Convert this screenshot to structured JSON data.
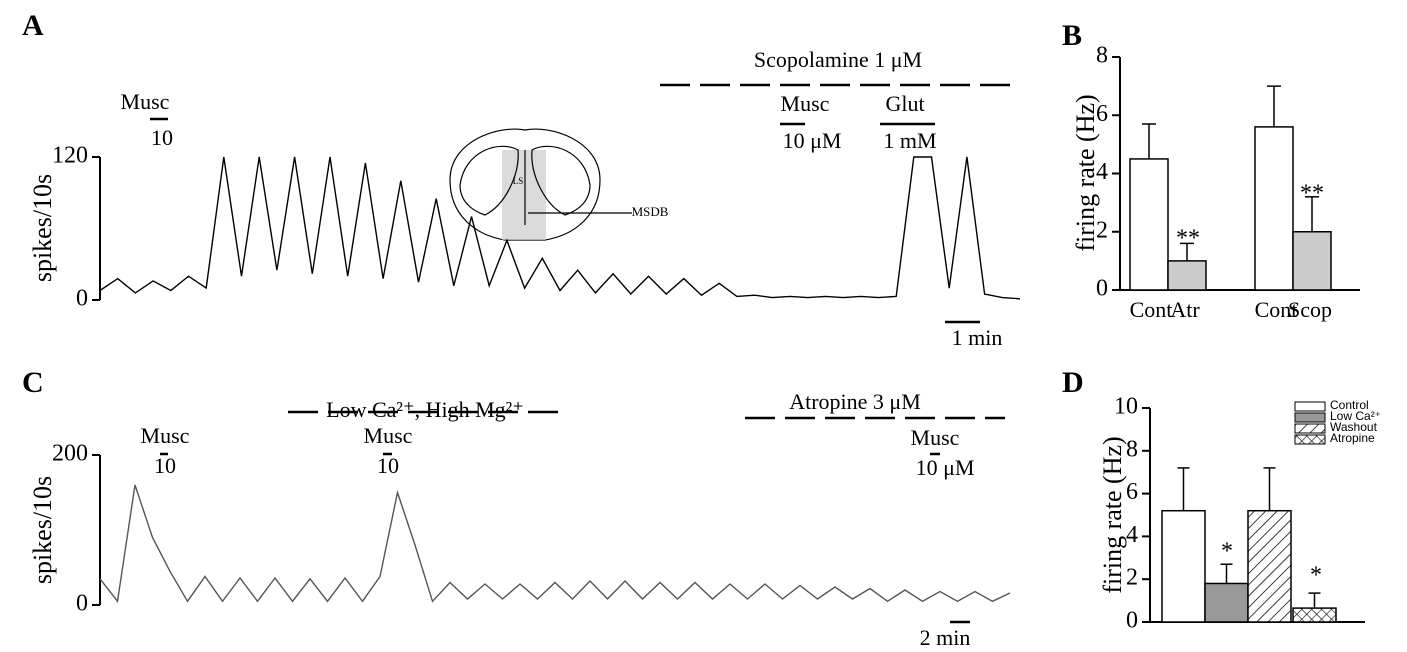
{
  "chart_data": [
    {
      "type": "line",
      "panel": "A",
      "ylabel": "spikes/10s",
      "color": "#000000",
      "x": [
        0,
        0.5,
        1,
        1.5,
        2,
        2.5,
        3,
        3.5,
        4,
        4.5,
        5,
        5.5,
        6,
        6.5,
        7,
        7.5,
        8,
        8.5,
        9,
        9.5,
        10,
        10.5,
        11,
        11.5,
        12,
        12.5,
        13,
        13.5,
        14,
        14.5,
        15,
        15.5,
        16,
        16.5,
        17,
        17.5,
        18,
        18.5,
        19,
        19.5,
        20,
        20.5,
        21,
        21.5,
        22,
        22.5,
        23,
        23.5,
        24,
        24.5,
        25,
        25.5,
        26
      ],
      "values": [
        8,
        18,
        6,
        16,
        8,
        20,
        10,
        120,
        20,
        120,
        25,
        120,
        22,
        120,
        20,
        115,
        18,
        100,
        15,
        85,
        12,
        70,
        12,
        50,
        10,
        35,
        8,
        25,
        6,
        22,
        5,
        20,
        5,
        18,
        4,
        14,
        3,
        4,
        2,
        3,
        2,
        3,
        2,
        3,
        2,
        3,
        120,
        120,
        10,
        120,
        5,
        2,
        1
      ],
      "xlim": [
        0,
        26
      ],
      "ylim": [
        0,
        120
      ],
      "yticks": [
        0,
        120
      ],
      "annotations": [
        "Musc",
        "10",
        "Scopolamine 1 μM",
        "Musc",
        "10 μM",
        "Glut",
        "1 mM",
        "LS",
        "MSDB",
        "1 min"
      ]
    },
    {
      "type": "bar",
      "panel": "B",
      "ylabel": "firing rate (Hz)",
      "categories": [
        "Cont",
        "Atr",
        "Cont",
        "Scop"
      ],
      "values": [
        4.5,
        1.0,
        5.6,
        2.0
      ],
      "errors": [
        1.2,
        0.6,
        1.4,
        1.2
      ],
      "colors": [
        "#ffffff",
        "#cccccc",
        "#ffffff",
        "#cccccc"
      ],
      "ylim": [
        0,
        8
      ],
      "yticks": [
        0,
        2,
        4,
        6,
        8
      ],
      "annotations": [
        "**",
        "**"
      ]
    },
    {
      "type": "line",
      "panel": "C",
      "ylabel": "spikes/10s",
      "color": "#555555",
      "x": [
        0,
        1,
        2,
        3,
        4,
        5,
        6,
        7,
        8,
        9,
        10,
        11,
        12,
        13,
        14,
        15,
        16,
        17,
        18,
        19,
        20,
        21,
        22,
        23,
        24,
        25,
        26,
        27,
        28,
        29,
        30,
        31,
        32,
        33,
        34,
        35,
        36,
        37,
        38,
        39,
        40,
        41,
        42,
        43,
        44,
        45,
        46,
        47,
        48,
        49,
        50,
        51,
        52
      ],
      "values": [
        35,
        5,
        160,
        90,
        45,
        5,
        38,
        5,
        36,
        5,
        36,
        5,
        35,
        5,
        36,
        5,
        38,
        150,
        80,
        5,
        30,
        8,
        28,
        8,
        28,
        8,
        30,
        8,
        32,
        8,
        32,
        8,
        30,
        8,
        30,
        8,
        28,
        8,
        28,
        8,
        26,
        8,
        24,
        8,
        22,
        5,
        20,
        5,
        18,
        5,
        18,
        5,
        16
      ],
      "xlim": [
        0,
        52
      ],
      "ylim": [
        0,
        200
      ],
      "yticks": [
        0,
        200
      ],
      "annotations": [
        "Low Ca²⁺, High Mg²⁺",
        "Musc",
        "10",
        "Musc",
        "10",
        "Atropine 3 μM",
        "Musc",
        "10 μM",
        "2 min"
      ]
    },
    {
      "type": "grouped-bar",
      "panel": "D",
      "ylabel": "firing rate (Hz)",
      "series": [
        {
          "name": "Control",
          "color": "#ffffff",
          "pattern": "none",
          "values": [
            5.2
          ],
          "errors": [
            2.0
          ]
        },
        {
          "name": "Low Ca²⁺",
          "color": "#999999",
          "pattern": "none",
          "values": [
            1.8
          ],
          "errors": [
            0.9
          ]
        },
        {
          "name": "Washout",
          "color": "#ffffff",
          "pattern": "diagonal",
          "values": [
            5.2
          ],
          "errors": [
            2.0
          ]
        },
        {
          "name": "Atropine",
          "color": "#ffffff",
          "pattern": "cross",
          "values": [
            0.65
          ],
          "errors": [
            0.7
          ]
        }
      ],
      "ylim": [
        0,
        10
      ],
      "yticks": [
        0,
        2,
        4,
        6,
        8,
        10
      ],
      "annotations": [
        "*",
        "*"
      ]
    }
  ]
}
